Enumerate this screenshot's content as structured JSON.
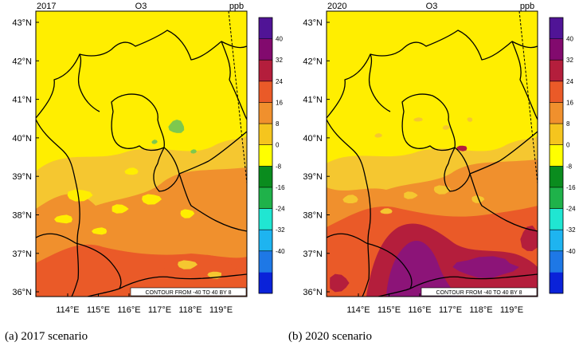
{
  "panels": [
    {
      "year_label": "2017",
      "species_label": "O3",
      "unit_label": "ppb",
      "caption": "(a)  2017 scenario",
      "contour_note": "CONTOUR FROM -40 TO 40 BY 8",
      "intensity": "moderate"
    },
    {
      "year_label": "2020",
      "species_label": "O3",
      "unit_label": "ppb",
      "caption": "(b)  2020 scenario",
      "contour_note": "CONTOUR FROM -40 TO 40 BY 8",
      "intensity": "high"
    }
  ],
  "lat_labels": [
    "43°N",
    "42°N",
    "41°N",
    "40°N",
    "39°N",
    "38°N",
    "37°N",
    "36°N"
  ],
  "lon_labels": [
    "114°E",
    "115°E",
    "116°E",
    "117°E",
    "118°E",
    "119°E"
  ],
  "colorbar": {
    "labels": [
      "40",
      "32",
      "24",
      "16",
      "8",
      "0",
      "-8",
      "-16",
      "-24",
      "-32",
      "-40"
    ],
    "colors": [
      "#0a22d9",
      "#1e78e6",
      "#1eb4f0",
      "#20e6d2",
      "#1fb24a",
      "#0a8c1e",
      "#ffff00",
      "#f5c51e",
      "#f0902d",
      "#ea5a28",
      "#b41e3c",
      "#820a6e",
      "#501496"
    ]
  },
  "map_colors": {
    "yellow": "#ffee00",
    "light_orange": "#f5c730",
    "orange": "#f0902d",
    "red_orange": "#ea5a28",
    "dark_red": "#b41e3c",
    "purple": "#8c1478",
    "green": "#7ec84e"
  }
}
